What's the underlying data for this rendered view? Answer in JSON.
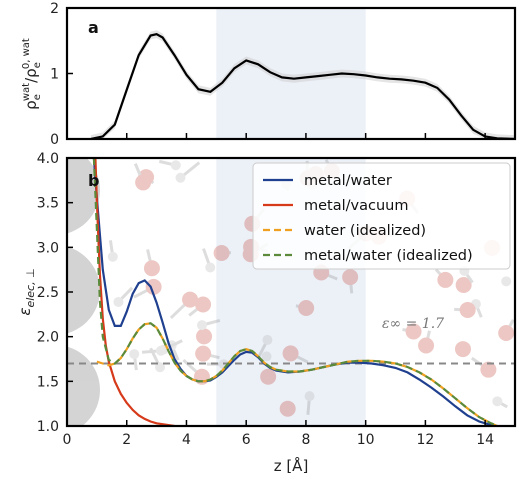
{
  "chart_data": [
    {
      "panel": "a",
      "type": "line",
      "ylabel": "ρ_e^wat / ρ_e^{0,wat}",
      "ylabel_main": "ρ",
      "ylabel_sup1": "wat",
      "ylabel_sub1": "e",
      "ylabel_sup2": "0, wat",
      "ylabel_sub2": "e",
      "xlim": [
        0,
        15
      ],
      "ylim": [
        0,
        2
      ],
      "yticks": [
        0,
        1,
        2
      ],
      "shaded_region": [
        5,
        10
      ],
      "series": [
        {
          "color": "#000000",
          "x": [
            0.8,
            1.2,
            1.6,
            2.0,
            2.4,
            2.8,
            3.0,
            3.2,
            3.6,
            4.0,
            4.4,
            4.8,
            5.2,
            5.6,
            6.0,
            6.4,
            6.8,
            7.2,
            7.6,
            8.0,
            8.4,
            8.8,
            9.2,
            9.6,
            10.0,
            10.4,
            10.8,
            11.2,
            11.6,
            12.0,
            12.4,
            12.8,
            13.2,
            13.6,
            14.0,
            14.4,
            15.0
          ],
          "y": [
            0.0,
            0.04,
            0.22,
            0.75,
            1.28,
            1.58,
            1.6,
            1.55,
            1.28,
            0.98,
            0.76,
            0.72,
            0.86,
            1.08,
            1.2,
            1.14,
            1.02,
            0.94,
            0.92,
            0.94,
            0.96,
            0.98,
            1.0,
            0.99,
            0.97,
            0.94,
            0.92,
            0.91,
            0.89,
            0.86,
            0.78,
            0.6,
            0.36,
            0.14,
            0.04,
            0.01,
            0.0
          ]
        }
      ]
    },
    {
      "panel": "b",
      "type": "line",
      "xlabel": "z [Å]",
      "ylabel": "ε_elec,⊥",
      "ylabel_main": "ε",
      "ylabel_sub": "elec, ⊥",
      "xlim": [
        0,
        15
      ],
      "ylim": [
        1.0,
        4.0
      ],
      "xticks": [
        0,
        2,
        4,
        6,
        8,
        10,
        12,
        14
      ],
      "yticks": [
        1.0,
        1.5,
        2.0,
        2.5,
        3.0,
        3.5,
        4.0
      ],
      "shaded_region": [
        5,
        10
      ],
      "hline": {
        "y": 1.7,
        "label": "ε∞ = 1.7"
      },
      "legend_position": "top-right",
      "series": [
        {
          "name": "metal/water",
          "color": "#1f3f8f",
          "dash": false,
          "x": [
            0.9,
            1.0,
            1.2,
            1.4,
            1.6,
            1.8,
            2.0,
            2.2,
            2.4,
            2.6,
            2.8,
            3.0,
            3.2,
            3.4,
            3.6,
            3.8,
            4.0,
            4.2,
            4.4,
            4.6,
            4.8,
            5.0,
            5.2,
            5.4,
            5.6,
            5.8,
            6.0,
            6.2,
            6.4,
            6.6,
            6.8,
            7.0,
            7.4,
            7.8,
            8.2,
            8.6,
            9.0,
            9.4,
            9.8,
            10.2,
            10.6,
            11.0,
            11.4,
            11.8,
            12.2,
            12.6,
            13.0,
            13.4,
            13.8,
            14.2,
            14.4
          ],
          "y": [
            4.0,
            3.55,
            2.75,
            2.3,
            2.12,
            2.12,
            2.28,
            2.48,
            2.6,
            2.63,
            2.56,
            2.38,
            2.16,
            1.93,
            1.75,
            1.64,
            1.56,
            1.52,
            1.5,
            1.5,
            1.51,
            1.55,
            1.6,
            1.67,
            1.74,
            1.8,
            1.83,
            1.82,
            1.77,
            1.7,
            1.65,
            1.62,
            1.6,
            1.61,
            1.63,
            1.66,
            1.69,
            1.71,
            1.71,
            1.7,
            1.68,
            1.65,
            1.6,
            1.52,
            1.43,
            1.33,
            1.22,
            1.12,
            1.05,
            1.01,
            1.0
          ]
        },
        {
          "name": "metal/vacuum",
          "color": "#d63a1a",
          "dash": false,
          "x": [
            0.95,
            1.0,
            1.1,
            1.2,
            1.3,
            1.4,
            1.6,
            1.8,
            2.0,
            2.2,
            2.4,
            2.6,
            2.8,
            3.0,
            3.2,
            3.4,
            3.6
          ],
          "y": [
            4.0,
            3.5,
            2.7,
            2.2,
            1.9,
            1.72,
            1.5,
            1.36,
            1.26,
            1.18,
            1.12,
            1.08,
            1.05,
            1.03,
            1.02,
            1.01,
            1.0
          ]
        },
        {
          "name": "water (idealized)",
          "color": "#f0a020",
          "dash": true,
          "x": [
            1.0,
            1.2,
            1.4,
            1.6,
            1.8,
            2.0,
            2.2,
            2.4,
            2.6,
            2.8,
            3.0,
            3.2,
            3.4,
            3.6,
            3.8,
            4.0,
            4.2,
            4.4,
            4.6,
            4.8,
            5.0,
            5.2,
            5.4,
            5.6,
            5.8,
            6.0,
            6.2,
            6.4,
            6.6,
            6.8,
            7.0,
            7.4,
            7.8,
            8.2,
            8.6,
            9.0,
            9.4,
            9.8,
            10.2,
            10.6,
            11.0,
            11.4,
            11.8,
            12.2,
            12.6,
            13.0,
            13.4,
            13.8,
            14.2,
            14.4
          ],
          "y": [
            1.72,
            1.7,
            1.68,
            1.7,
            1.76,
            1.86,
            1.98,
            2.08,
            2.14,
            2.15,
            2.1,
            1.98,
            1.84,
            1.71,
            1.62,
            1.56,
            1.52,
            1.5,
            1.5,
            1.52,
            1.56,
            1.62,
            1.7,
            1.78,
            1.84,
            1.86,
            1.84,
            1.78,
            1.71,
            1.66,
            1.63,
            1.61,
            1.61,
            1.63,
            1.66,
            1.69,
            1.72,
            1.73,
            1.73,
            1.72,
            1.7,
            1.66,
            1.6,
            1.52,
            1.42,
            1.31,
            1.2,
            1.1,
            1.03,
            1.0
          ]
        },
        {
          "name": "metal/water (idealized)",
          "color": "#5a8a3a",
          "dash": true,
          "x": [
            0.9,
            1.0,
            1.1,
            1.2,
            1.4,
            1.6,
            1.8,
            2.0,
            2.2,
            2.4,
            2.6,
            2.8,
            3.0,
            3.2,
            3.4,
            3.6,
            3.8,
            4.0,
            4.2,
            4.4,
            4.6,
            4.8,
            5.0,
            5.2,
            5.4,
            5.6,
            5.8,
            6.0,
            6.2,
            6.4,
            6.6,
            6.8,
            7.0,
            7.4,
            7.8,
            8.2,
            8.6,
            9.0,
            9.4,
            9.8,
            10.2,
            10.6,
            11.0,
            11.4,
            11.8,
            12.2,
            12.6,
            13.0,
            13.4,
            13.8,
            14.2,
            14.4
          ],
          "y": [
            4.0,
            3.2,
            2.4,
            2.0,
            1.74,
            1.7,
            1.76,
            1.86,
            1.98,
            2.08,
            2.14,
            2.15,
            2.1,
            1.98,
            1.84,
            1.71,
            1.62,
            1.56,
            1.52,
            1.5,
            1.5,
            1.52,
            1.56,
            1.62,
            1.7,
            1.78,
            1.84,
            1.86,
            1.84,
            1.78,
            1.71,
            1.66,
            1.63,
            1.61,
            1.61,
            1.63,
            1.66,
            1.69,
            1.72,
            1.73,
            1.73,
            1.72,
            1.7,
            1.66,
            1.6,
            1.52,
            1.42,
            1.31,
            1.2,
            1.1,
            1.03,
            1.0
          ]
        }
      ]
    }
  ]
}
